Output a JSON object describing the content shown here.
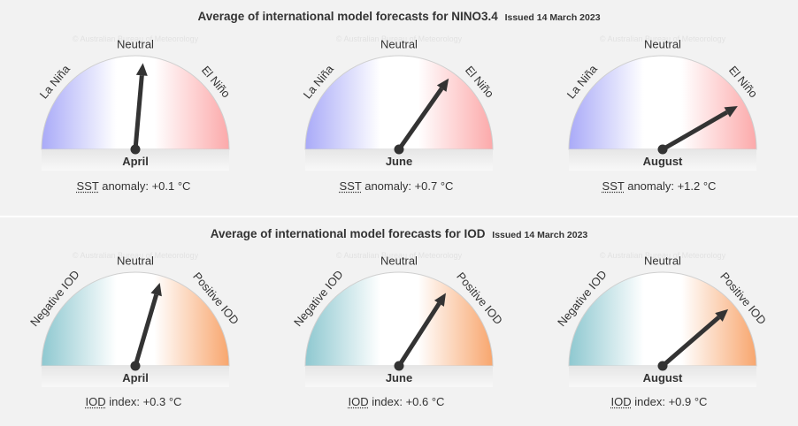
{
  "nino": {
    "title": "Average of international model forecasts for NINO3.4",
    "issued": "Issued 14 March 2023",
    "watermark": "© Australian Bureau of Meteorology",
    "labels": {
      "left": "La Niña",
      "center": "Neutral",
      "right": "El Niño"
    },
    "colors": {
      "left": "#a9aaf8",
      "right": "#fca9aa",
      "band": "#dddddd"
    },
    "gauges": [
      {
        "month": "April",
        "abbr": "SST",
        "metric": "anomaly: +0.1 °C",
        "value": 0.1
      },
      {
        "month": "June",
        "abbr": "SST",
        "metric": "anomaly: +0.7 °C",
        "value": 0.7
      },
      {
        "month": "August",
        "abbr": "SST",
        "metric": "anomaly: +1.2 °C",
        "value": 1.2
      }
    ],
    "scale_max": 1.8
  },
  "iod": {
    "title": "Average of international model forecasts for IOD",
    "issued": "Issued 14 March 2023",
    "watermark": "© Australian Bureau of Meteorology",
    "labels": {
      "left": "Negative IOD",
      "center": "Neutral",
      "right": "Positive IOD"
    },
    "colors": {
      "left": "#8ec8d0",
      "right": "#f8a66e",
      "band": "#dddddd"
    },
    "gauges": [
      {
        "month": "April",
        "abbr": "IOD",
        "metric": "index: +0.3 °C",
        "value": 0.3
      },
      {
        "month": "June",
        "abbr": "IOD",
        "metric": "index: +0.6 °C",
        "value": 0.6
      },
      {
        "month": "August",
        "abbr": "IOD",
        "metric": "index: +0.9 °C",
        "value": 0.9
      }
    ],
    "scale_max": 1.65
  }
}
